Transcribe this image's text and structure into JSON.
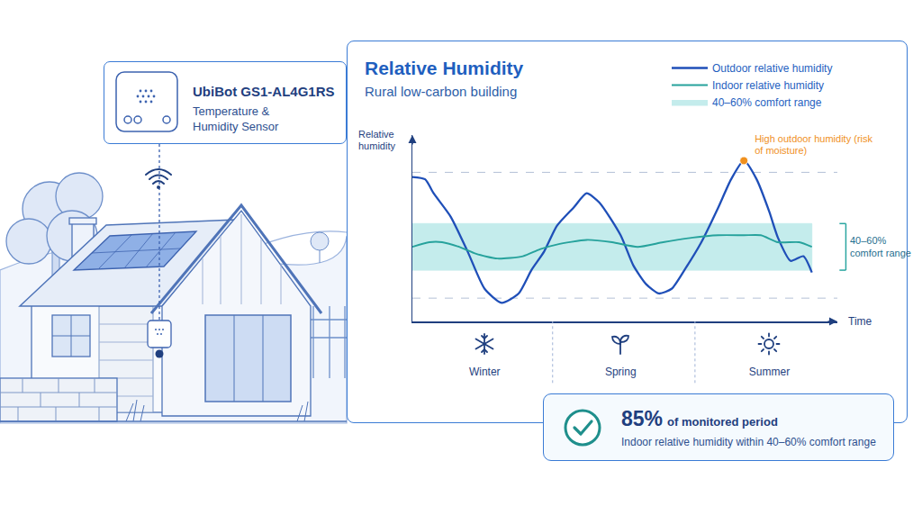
{
  "sensor": {
    "name": "UbiBot GS1-AL4G1RS",
    "description": "Temperature & Humidity Sensor"
  },
  "chart_data": {
    "type": "line",
    "title": "Relative Humidity",
    "subtitle": "Rural low-carbon building",
    "y_label": "Relative humidity",
    "x_label": "Time",
    "xlim": [
      0,
      100
    ],
    "xticks": [
      {
        "value": 17,
        "label": "Winter"
      },
      {
        "value": 49,
        "label": "Spring"
      },
      {
        "value": 84,
        "label": "Summer"
      }
    ],
    "ylim": [
      18,
      98
    ],
    "yticks": [],
    "tick_labels": "x",
    "grid": false,
    "legend": "top right",
    "series": [
      {
        "name": "Outdoor relative humidity",
        "color": "#1f4fb8",
        "x": [
          0,
          3,
          5,
          9,
          13,
          17,
          21,
          25,
          28,
          31,
          34,
          38,
          41,
          44,
          49,
          52,
          55,
          58,
          61,
          64,
          68,
          72,
          75,
          78,
          81,
          84,
          86,
          89,
          92,
          94
        ],
        "values": [
          80,
          79,
          73,
          63,
          48,
          32,
          26,
          30,
          40,
          48,
          59,
          67,
          73,
          69,
          55,
          42,
          34,
          30,
          32,
          40,
          52,
          67,
          79,
          87,
          79,
          65,
          54,
          44,
          46,
          39
        ]
      },
      {
        "name": "Indoor relative humidity",
        "color": "#26a29c",
        "x": [
          0,
          4,
          7,
          11,
          15,
          20,
          26,
          30,
          34,
          41,
          47,
          53,
          59,
          66,
          72,
          78,
          82,
          86,
          91,
          94
        ],
        "values": [
          50,
          52,
          52,
          50,
          47,
          45,
          46,
          49,
          51,
          53,
          52,
          50,
          52,
          54,
          55,
          55,
          55,
          52,
          52,
          50
        ]
      }
    ],
    "comfort_band": {
      "name": "40–60% comfort range",
      "values": [
        40,
        60
      ],
      "color": "#c4ecec"
    },
    "reference_lines": [
      82,
      28
    ],
    "annotations": [
      {
        "text": "High outdoor humidity (risk of moisture)",
        "x": 78,
        "y": 87,
        "color": "#f0901e"
      }
    ]
  },
  "summary": {
    "value": 85,
    "unit": "%",
    "text": "of monitored period",
    "caption": "Indoor relative humidity within 40–60% comfort range"
  }
}
